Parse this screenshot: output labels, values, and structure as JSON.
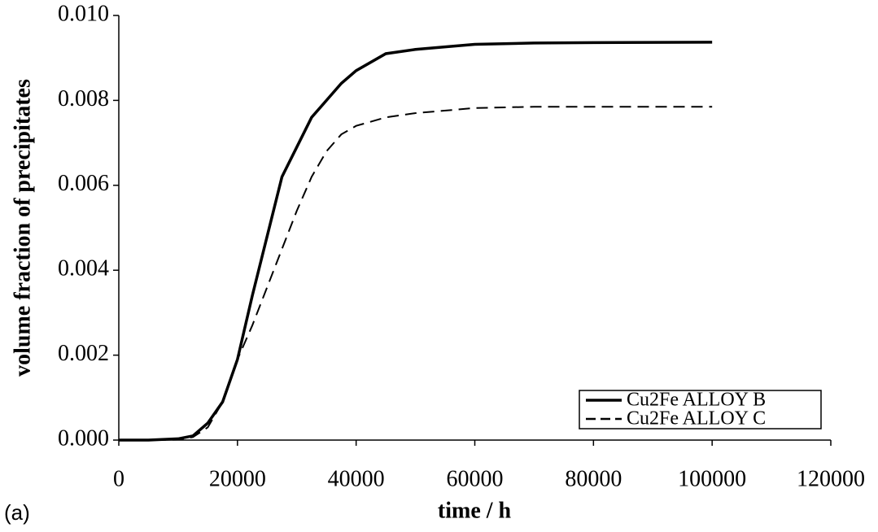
{
  "chart_data": {
    "type": "line",
    "xlabel": "time / h",
    "ylabel": "volume fraction of precipitates",
    "panel_label": "(a)",
    "x": [
      0,
      5000,
      10000,
      12500,
      15000,
      17500,
      20000,
      22500,
      25000,
      27500,
      30000,
      32500,
      35000,
      37500,
      40000,
      45000,
      50000,
      60000,
      70000,
      80000,
      100000
    ],
    "series": [
      {
        "name": "Cu2Fe ALLOY B",
        "color": "#000000",
        "style": "solid",
        "values": [
          0,
          0,
          3e-05,
          0.0001,
          0.0004,
          0.0009,
          0.0019,
          0.0034,
          0.0048,
          0.0062,
          0.0069,
          0.0076,
          0.008,
          0.0084,
          0.0087,
          0.0091,
          0.0092,
          0.00932,
          0.00935,
          0.00936,
          0.00937
        ]
      },
      {
        "name": "Cu2Fe ALLOY C",
        "color": "#000000",
        "style": "dashed",
        "values": [
          0,
          0,
          1e-05,
          7e-05,
          0.0003,
          0.0009,
          0.0019,
          0.0027,
          0.0036,
          0.0045,
          0.0054,
          0.0062,
          0.0068,
          0.0072,
          0.0074,
          0.0076,
          0.0077,
          0.00782,
          0.00785,
          0.00785,
          0.00785
        ]
      }
    ],
    "xlim": [
      0,
      120000
    ],
    "xticks": [
      0,
      20000,
      40000,
      60000,
      80000,
      100000,
      120000
    ],
    "ylim": [
      0,
      0.01
    ],
    "yticks": [
      {
        "value": 0,
        "label": "0.000"
      },
      {
        "value": 0.002,
        "label": "0.002"
      },
      {
        "value": 0.004,
        "label": "0.004"
      },
      {
        "value": 0.006,
        "label": "0.006"
      },
      {
        "value": 0.008,
        "label": "0.008"
      },
      {
        "value": 0.01,
        "label": "0.010"
      }
    ],
    "legend": "lower right"
  }
}
